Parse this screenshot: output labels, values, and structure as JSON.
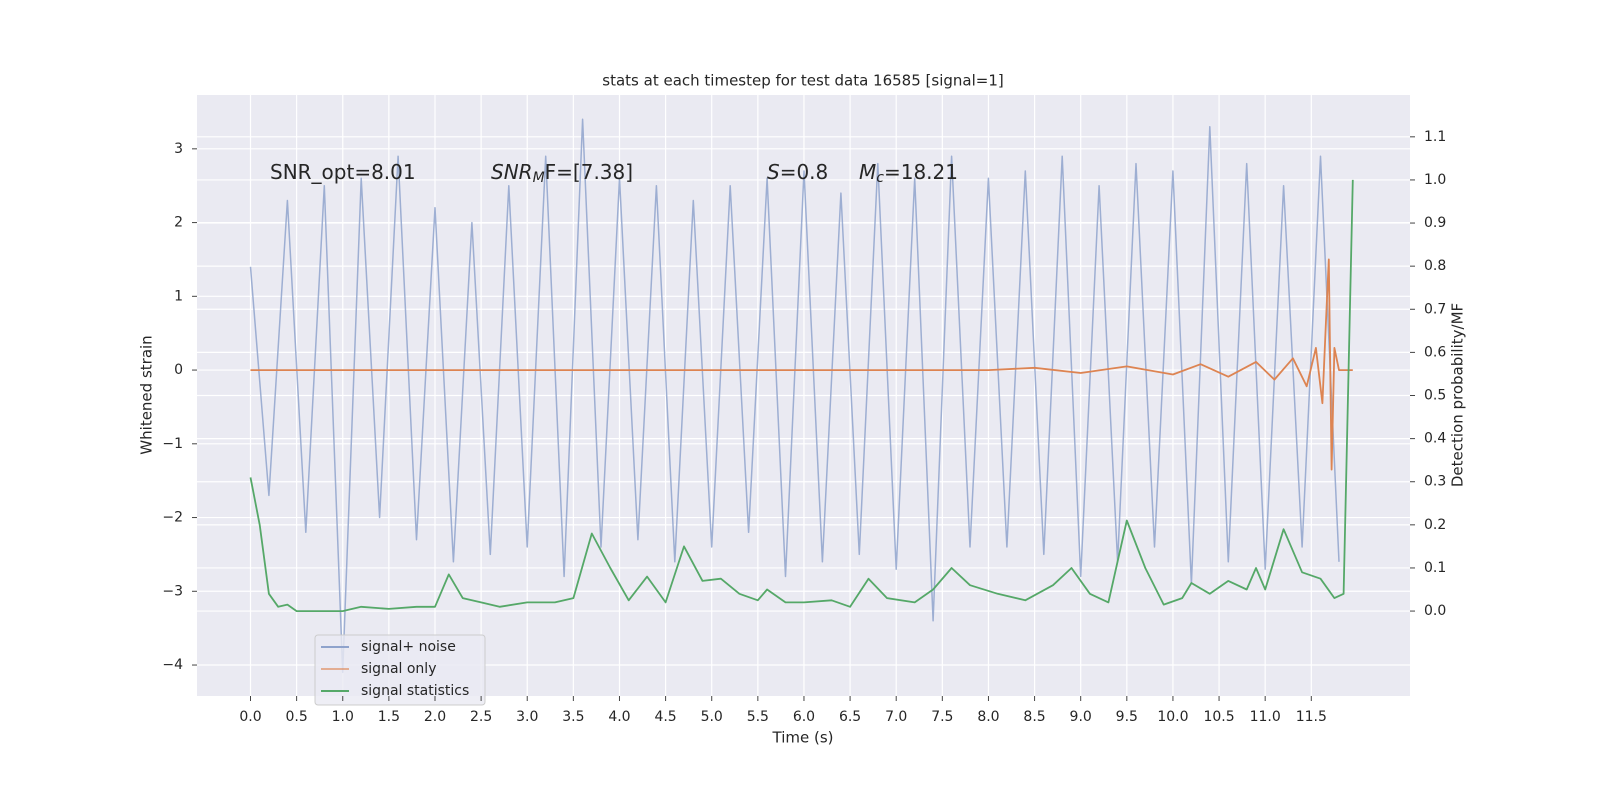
{
  "chart_data": {
    "type": "line",
    "title": "stats at each timestep for test data 16585 [signal=1]",
    "xlabel": "Time (s)",
    "ylabel": "Whitened strain",
    "y2label": "Detection probability/MF",
    "xlim": [
      -0.58,
      12.57
    ],
    "ylim": [
      -4.42,
      3.73
    ],
    "y2lim": [
      -0.197,
      1.197
    ],
    "xticks": [
      {
        "value": 0,
        "label": "0.0"
      },
      {
        "value": 0.5,
        "label": "0.5"
      },
      {
        "value": 1,
        "label": "1.0"
      },
      {
        "value": 1.5,
        "label": "1.5"
      },
      {
        "value": 2,
        "label": "2.0"
      },
      {
        "value": 2.5,
        "label": "2.5"
      },
      {
        "value": 3,
        "label": "3.0"
      },
      {
        "value": 3.5,
        "label": "3.5"
      },
      {
        "value": 4,
        "label": "4.0"
      },
      {
        "value": 4.5,
        "label": "4.5"
      },
      {
        "value": 5,
        "label": "5.0"
      },
      {
        "value": 5.5,
        "label": "5.5"
      },
      {
        "value": 6,
        "label": "6.0"
      },
      {
        "value": 6.5,
        "label": "6.5"
      },
      {
        "value": 7,
        "label": "7.0"
      },
      {
        "value": 7.5,
        "label": "7.5"
      },
      {
        "value": 8,
        "label": "8.0"
      },
      {
        "value": 8.5,
        "label": "8.5"
      },
      {
        "value": 9,
        "label": "9.0"
      },
      {
        "value": 9.5,
        "label": "9.5"
      },
      {
        "value": 10,
        "label": "10.0"
      },
      {
        "value": 10.5,
        "label": "10.5"
      },
      {
        "value": 11,
        "label": "11.0"
      },
      {
        "value": 11.5,
        "label": "11.5"
      }
    ],
    "yticks": [
      {
        "value": -4,
        "label": "−4"
      },
      {
        "value": -3,
        "label": "−3"
      },
      {
        "value": -2,
        "label": "−2"
      },
      {
        "value": -1,
        "label": "−1"
      },
      0,
      1,
      2,
      3
    ],
    "y2ticks": [
      {
        "value": 0,
        "label": "0.0"
      },
      {
        "value": 0.1,
        "label": "0.1"
      },
      {
        "value": 0.2,
        "label": "0.2"
      },
      {
        "value": 0.3,
        "label": "0.3"
      },
      {
        "value": 0.4,
        "label": "0.4"
      },
      {
        "value": 0.5,
        "label": "0.5"
      },
      {
        "value": 0.6,
        "label": "0.6"
      },
      {
        "value": 0.7,
        "label": "0.7"
      },
      {
        "value": 0.8,
        "label": "0.8"
      },
      {
        "value": 0.9,
        "label": "0.9"
      },
      {
        "value": 1,
        "label": "1.0"
      },
      {
        "value": 1.1,
        "label": "1.1"
      }
    ],
    "grid": true,
    "legend": "lower left",
    "annotations": [
      {
        "main": "SNR_opt=8.01"
      },
      {
        "main": "SNR",
        "sub": "M",
        "tail": "F=[7.38]"
      },
      {
        "main": "S",
        "tail": "=0.8"
      },
      {
        "main": "M",
        "sub": "c",
        "tail": "=18.21"
      }
    ],
    "series": [
      {
        "name": "signal+ noise",
        "color": "#8fa3cc",
        "x": [
          0,
          0.2,
          0.4,
          0.6,
          0.8,
          1,
          1.2,
          1.4,
          1.6,
          1.8,
          2,
          2.2,
          2.4,
          2.6,
          2.8,
          3,
          3.2,
          3.4,
          3.6,
          3.8,
          4,
          4.2,
          4.4,
          4.6,
          4.8,
          5,
          5.2,
          5.4,
          5.6,
          5.8,
          6,
          6.2,
          6.4,
          6.6,
          6.8,
          7,
          7.2,
          7.4,
          7.6,
          7.8,
          8,
          8.2,
          8.4,
          8.6,
          8.8,
          9,
          9.2,
          9.4,
          9.6,
          9.8,
          10,
          10.2,
          10.4,
          10.6,
          10.8,
          11,
          11.2,
          11.4,
          11.6,
          11.8
        ],
        "values": [
          1.4,
          -1.7,
          2.3,
          -2.2,
          2.5,
          -4.1,
          2.6,
          -2.0,
          2.9,
          -2.3,
          2.2,
          -2.6,
          2.0,
          -2.5,
          2.5,
          -2.4,
          2.9,
          -2.8,
          3.4,
          -2.4,
          2.6,
          -2.3,
          2.5,
          -2.6,
          2.3,
          -2.4,
          2.5,
          -2.2,
          2.6,
          -2.8,
          2.7,
          -2.6,
          2.4,
          -2.5,
          2.8,
          -2.7,
          2.6,
          -3.4,
          2.9,
          -2.4,
          2.6,
          -2.4,
          2.7,
          -2.5,
          2.9,
          -2.8,
          2.5,
          -2.6,
          2.8,
          -2.4,
          2.7,
          -2.9,
          3.3,
          -2.6,
          2.8,
          -2.7,
          2.5,
          -2.4,
          2.9,
          -2.6
        ]
      },
      {
        "name": "signal only",
        "color": "#dd8452",
        "x": [
          0,
          8,
          8.5,
          9,
          9.5,
          10,
          10.3,
          10.6,
          10.9,
          11.1,
          11.3,
          11.45,
          11.55,
          11.62,
          11.66,
          11.69,
          11.72,
          11.75,
          11.8,
          11.95
        ],
        "values": [
          0,
          0,
          0.03,
          -0.04,
          0.05,
          -0.06,
          0.08,
          -0.09,
          0.11,
          -0.13,
          0.16,
          -0.22,
          0.3,
          -0.45,
          0.7,
          1.5,
          -1.35,
          0.3,
          0,
          0
        ]
      },
      {
        "name": "signal statistics",
        "color": "#55a868",
        "axis": "y2",
        "x": [
          0,
          0.1,
          0.2,
          0.3,
          0.4,
          0.5,
          0.7,
          1.0,
          1.2,
          1.5,
          1.8,
          2.0,
          2.15,
          2.3,
          2.5,
          2.7,
          3.0,
          3.3,
          3.5,
          3.7,
          3.9,
          4.1,
          4.3,
          4.5,
          4.7,
          4.9,
          5.1,
          5.3,
          5.5,
          5.6,
          5.8,
          6.0,
          6.3,
          6.5,
          6.7,
          6.9,
          7.2,
          7.4,
          7.6,
          7.8,
          8.1,
          8.4,
          8.7,
          8.9,
          9.1,
          9.3,
          9.5,
          9.7,
          9.9,
          10.1,
          10.2,
          10.4,
          10.6,
          10.8,
          10.9,
          11.0,
          11.2,
          11.4,
          11.6,
          11.75,
          11.85,
          11.95
        ],
        "values": [
          0.31,
          0.2,
          0.04,
          0.01,
          0.015,
          0.0,
          0.0,
          0.0,
          0.01,
          0.005,
          0.01,
          0.01,
          0.085,
          0.03,
          0.02,
          0.01,
          0.02,
          0.02,
          0.03,
          0.18,
          0.1,
          0.025,
          0.08,
          0.02,
          0.15,
          0.07,
          0.075,
          0.04,
          0.025,
          0.05,
          0.02,
          0.02,
          0.025,
          0.01,
          0.075,
          0.03,
          0.02,
          0.05,
          0.1,
          0.06,
          0.04,
          0.025,
          0.06,
          0.1,
          0.04,
          0.02,
          0.21,
          0.1,
          0.015,
          0.03,
          0.065,
          0.04,
          0.07,
          0.05,
          0.1,
          0.05,
          0.19,
          0.09,
          0.075,
          0.03,
          0.04,
          1.0
        ]
      }
    ]
  }
}
